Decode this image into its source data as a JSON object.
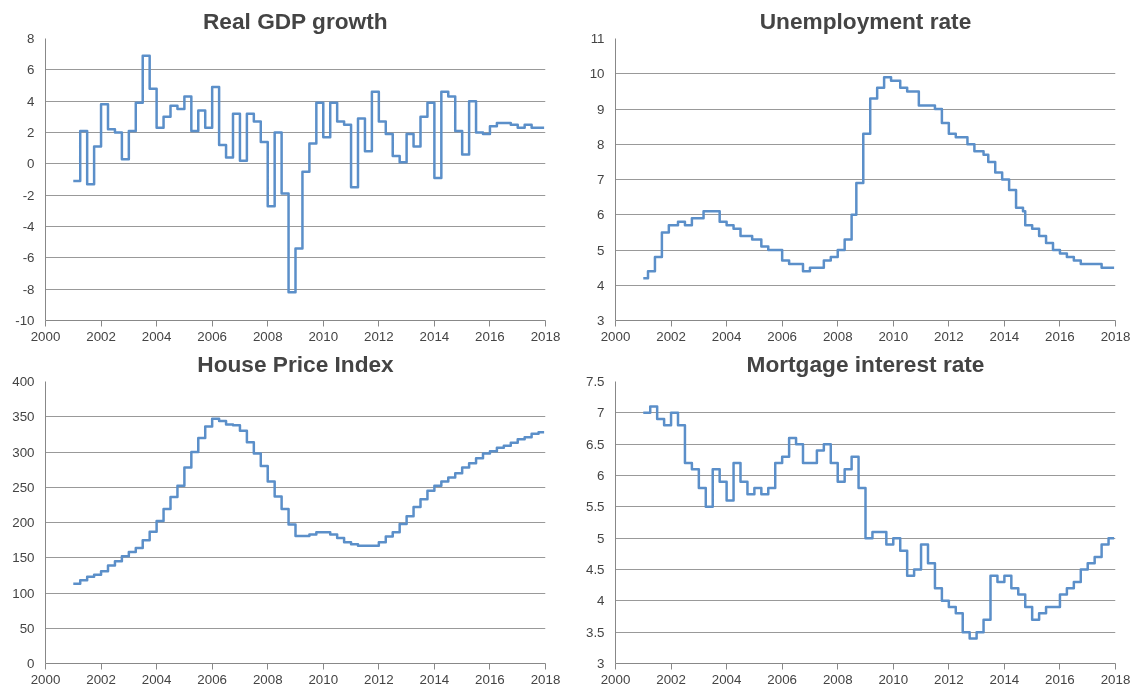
{
  "chart_data": [
    {
      "type": "step",
      "title": "Real GDP growth",
      "xlim": [
        2000,
        2018
      ],
      "xticks": [
        2000,
        2002,
        2004,
        2006,
        2008,
        2010,
        2012,
        2014,
        2016,
        2018
      ],
      "ylim": [
        -10,
        8
      ],
      "yticks": [
        -10,
        -8,
        -6,
        -4,
        -2,
        0,
        2,
        4,
        6,
        8
      ],
      "grid": "y",
      "series": [
        {
          "color": "#5b8fc9",
          "x": [
            2001.0,
            2001.25,
            2001.5,
            2001.75,
            2002.0,
            2002.25,
            2002.5,
            2002.75,
            2003.0,
            2003.25,
            2003.5,
            2003.75,
            2004.0,
            2004.25,
            2004.5,
            2004.75,
            2005.0,
            2005.25,
            2005.5,
            2005.75,
            2006.0,
            2006.25,
            2006.5,
            2006.75,
            2007.0,
            2007.25,
            2007.5,
            2007.75,
            2008.0,
            2008.25,
            2008.5,
            2008.75,
            2009.0,
            2009.25,
            2009.5,
            2009.75,
            2010.0,
            2010.25,
            2010.5,
            2010.75,
            2011.0,
            2011.25,
            2011.5,
            2011.75,
            2012.0,
            2012.25,
            2012.5,
            2012.75,
            2013.0,
            2013.25,
            2013.5,
            2013.75,
            2014.0,
            2014.25,
            2014.5,
            2014.75,
            2015.0,
            2015.25,
            2015.5,
            2015.75,
            2016.0,
            2016.25,
            2016.5,
            2016.75,
            2017.0,
            2017.25,
            2017.5,
            2017.75,
            2017.95
          ],
          "values": [
            -1.1,
            2.1,
            -1.3,
            1.1,
            3.8,
            2.2,
            2.0,
            0.3,
            2.1,
            3.9,
            6.9,
            4.8,
            2.3,
            3.0,
            3.7,
            3.5,
            4.3,
            2.1,
            3.4,
            2.3,
            4.9,
            1.2,
            0.4,
            3.2,
            0.2,
            3.2,
            2.7,
            1.4,
            -2.7,
            2.0,
            -1.9,
            -8.2,
            -5.4,
            -0.5,
            1.3,
            3.9,
            1.7,
            3.9,
            2.7,
            2.5,
            -1.5,
            2.9,
            0.8,
            4.6,
            2.7,
            1.9,
            0.5,
            0.1,
            1.9,
            1.1,
            3.0,
            3.9,
            -0.9,
            4.6,
            4.3,
            2.1,
            0.6,
            4.0,
            2.0,
            1.9,
            2.4,
            2.6,
            2.6,
            2.5,
            2.3,
            2.5,
            2.3,
            2.3,
            2.3
          ]
        }
      ]
    },
    {
      "type": "step",
      "title": "Unemployment rate",
      "xlim": [
        2000,
        2018
      ],
      "xticks": [
        2000,
        2002,
        2004,
        2006,
        2008,
        2010,
        2012,
        2014,
        2016,
        2018
      ],
      "ylim": [
        3,
        11
      ],
      "yticks": [
        3,
        4,
        5,
        6,
        7,
        8,
        9,
        10,
        11
      ],
      "grid": "y",
      "series": [
        {
          "color": "#5b8fc9",
          "x": [
            2001.0,
            2001.17,
            2001.42,
            2001.67,
            2001.92,
            2002.25,
            2002.5,
            2002.75,
            2003.17,
            2003.75,
            2004.0,
            2004.25,
            2004.5,
            2004.92,
            2005.25,
            2005.5,
            2006.0,
            2006.25,
            2006.75,
            2007.0,
            2007.5,
            2007.75,
            2008.0,
            2008.25,
            2008.5,
            2008.67,
            2008.92,
            2009.17,
            2009.42,
            2009.67,
            2009.92,
            2010.25,
            2010.5,
            2010.92,
            2011.5,
            2011.75,
            2012.0,
            2012.25,
            2012.67,
            2012.92,
            2013.25,
            2013.42,
            2013.67,
            2013.92,
            2014.17,
            2014.42,
            2014.67,
            2014.75,
            2015.0,
            2015.25,
            2015.5,
            2015.75,
            2016.0,
            2016.25,
            2016.5,
            2016.75,
            2017.5,
            2017.95
          ],
          "values": [
            4.2,
            4.4,
            4.8,
            5.5,
            5.7,
            5.8,
            5.7,
            5.9,
            6.1,
            5.8,
            5.7,
            5.6,
            5.4,
            5.3,
            5.1,
            5.0,
            4.7,
            4.6,
            4.4,
            4.5,
            4.7,
            4.8,
            5.0,
            5.3,
            6.0,
            6.9,
            8.3,
            9.3,
            9.6,
            9.9,
            9.8,
            9.6,
            9.5,
            9.1,
            9.0,
            8.6,
            8.3,
            8.2,
            8.0,
            7.8,
            7.7,
            7.5,
            7.2,
            7.0,
            6.7,
            6.2,
            6.1,
            5.7,
            5.6,
            5.4,
            5.2,
            5.0,
            4.9,
            4.8,
            4.7,
            4.6,
            4.5,
            4.5
          ]
        }
      ]
    },
    {
      "type": "step",
      "title": "House Price Index",
      "xlim": [
        2000,
        2018
      ],
      "xticks": [
        2000,
        2002,
        2004,
        2006,
        2008,
        2010,
        2012,
        2014,
        2016,
        2018
      ],
      "ylim": [
        0,
        400
      ],
      "yticks": [
        0,
        50,
        100,
        150,
        200,
        250,
        300,
        350,
        400
      ],
      "grid": "y",
      "series": [
        {
          "color": "#5b8fc9",
          "x": [
            2001.0,
            2001.25,
            2001.5,
            2001.75,
            2002.0,
            2002.25,
            2002.5,
            2002.75,
            2003.0,
            2003.25,
            2003.5,
            2003.75,
            2004.0,
            2004.25,
            2004.5,
            2004.75,
            2005.0,
            2005.25,
            2005.5,
            2005.75,
            2006.0,
            2006.25,
            2006.5,
            2006.75,
            2007.0,
            2007.25,
            2007.5,
            2007.75,
            2008.0,
            2008.25,
            2008.5,
            2008.75,
            2009.0,
            2009.5,
            2009.75,
            2010.25,
            2010.5,
            2010.75,
            2011.0,
            2011.25,
            2012.0,
            2012.25,
            2012.5,
            2012.75,
            2013.0,
            2013.25,
            2013.5,
            2013.75,
            2014.0,
            2014.25,
            2014.5,
            2014.75,
            2015.0,
            2015.25,
            2015.5,
            2015.75,
            2016.0,
            2016.25,
            2016.5,
            2016.75,
            2017.0,
            2017.25,
            2017.5,
            2017.75,
            2017.95
          ],
          "values": [
            113,
            118,
            123,
            126,
            131,
            139,
            145,
            152,
            158,
            164,
            175,
            187,
            202,
            219,
            236,
            252,
            278,
            300,
            320,
            336,
            347,
            344,
            339,
            338,
            330,
            314,
            298,
            280,
            258,
            237,
            219,
            197,
            181,
            183,
            186,
            183,
            178,
            172,
            169,
            167,
            172,
            180,
            186,
            198,
            209,
            222,
            233,
            245,
            252,
            258,
            264,
            270,
            278,
            284,
            291,
            298,
            301,
            306,
            309,
            313,
            318,
            321,
            326,
            328,
            328
          ]
        }
      ]
    },
    {
      "type": "step",
      "title": "Mortgage interest rate",
      "xlim": [
        2000,
        2018
      ],
      "xticks": [
        2000,
        2002,
        2004,
        2006,
        2008,
        2010,
        2012,
        2014,
        2016,
        2018
      ],
      "ylim": [
        3,
        7.5
      ],
      "yticks": [
        3,
        3.5,
        4,
        4.5,
        5,
        5.5,
        6,
        6.5,
        7,
        7.5
      ],
      "grid": "y",
      "series": [
        {
          "color": "#5b8fc9",
          "x": [
            2001.0,
            2001.25,
            2001.5,
            2001.75,
            2002.0,
            2002.25,
            2002.5,
            2002.75,
            2003.0,
            2003.25,
            2003.5,
            2003.75,
            2004.0,
            2004.25,
            2004.5,
            2004.75,
            2005.0,
            2005.25,
            2005.5,
            2005.75,
            2006.0,
            2006.25,
            2006.5,
            2006.75,
            2007.25,
            2007.5,
            2007.75,
            2008.0,
            2008.25,
            2008.5,
            2008.75,
            2009.0,
            2009.25,
            2009.75,
            2010.0,
            2010.25,
            2010.5,
            2010.75,
            2011.0,
            2011.25,
            2011.5,
            2011.75,
            2012.0,
            2012.25,
            2012.5,
            2012.75,
            2013.0,
            2013.25,
            2013.5,
            2013.75,
            2014.0,
            2014.25,
            2014.5,
            2014.75,
            2015.0,
            2015.25,
            2015.5,
            2016.0,
            2016.25,
            2016.5,
            2016.75,
            2017.0,
            2017.25,
            2017.5,
            2017.75,
            2017.95
          ],
          "values": [
            7.0,
            7.1,
            6.9,
            6.8,
            7.0,
            6.8,
            6.2,
            6.1,
            5.8,
            5.5,
            6.1,
            5.9,
            5.6,
            6.2,
            5.9,
            5.7,
            5.8,
            5.7,
            5.8,
            6.2,
            6.3,
            6.6,
            6.5,
            6.2,
            6.4,
            6.5,
            6.2,
            5.9,
            6.1,
            6.3,
            5.8,
            5.0,
            5.1,
            4.9,
            5.0,
            4.8,
            4.4,
            4.5,
            4.9,
            4.6,
            4.2,
            4.0,
            3.9,
            3.8,
            3.5,
            3.4,
            3.5,
            3.7,
            4.4,
            4.3,
            4.4,
            4.2,
            4.1,
            3.9,
            3.7,
            3.8,
            3.9,
            4.1,
            4.2,
            4.3,
            4.5,
            4.6,
            4.7,
            4.9,
            5.0,
            5.0
          ]
        }
      ]
    }
  ]
}
